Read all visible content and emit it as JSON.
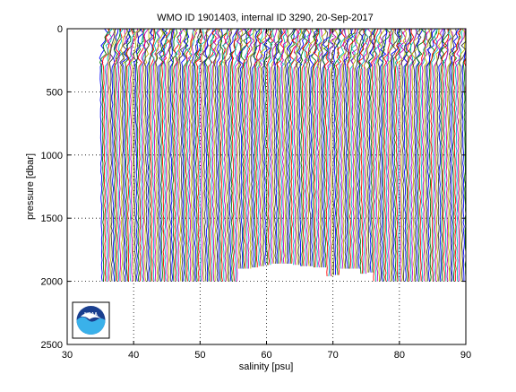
{
  "chart_data": {
    "type": "line",
    "title": "WMO ID 1901403, internal ID 3290, 20-Sep-2017",
    "xlabel": "salinity [psu]",
    "ylabel": "pressure [dbar]",
    "xlim": [
      30,
      90
    ],
    "ylim": [
      0,
      2500
    ],
    "y_reversed": true,
    "x_ticks": [
      30,
      40,
      50,
      60,
      70,
      80,
      90
    ],
    "y_ticks": [
      0,
      500,
      1000,
      1500,
      2000,
      2500
    ],
    "grid": true,
    "grid_style": "dotted",
    "profile_offset_description_visible": false,
    "profiles": {
      "count": 54,
      "first_offset_salinity": 35.0,
      "offset_step": 0.1,
      "max_pressure": [
        2000,
        2000,
        2000,
        2000,
        2000,
        2000,
        2000,
        2000,
        2000,
        2000,
        2000,
        2000,
        2000,
        2000,
        2000,
        2000,
        2000,
        2000,
        2000,
        2000,
        1900,
        1900,
        1890,
        1880,
        1870,
        1860,
        1860,
        1860,
        1870,
        1880,
        1880,
        1890,
        1890,
        1960,
        1950,
        1900,
        1900,
        1900,
        1940,
        1930,
        2000,
        2000,
        2000,
        2000,
        2000,
        2000,
        2000,
        2000,
        2000,
        2000,
        2000,
        2000,
        2000,
        2000
      ],
      "base_salinity_start": 35.0,
      "base_salinity_end": 90.0
    },
    "colors": [
      "#0000ff",
      "#008000",
      "#ff0000",
      "#00bfbf",
      "#bf00bf",
      "#bfbf00",
      "#404040"
    ]
  },
  "logo": {
    "text": "NOAA"
  }
}
